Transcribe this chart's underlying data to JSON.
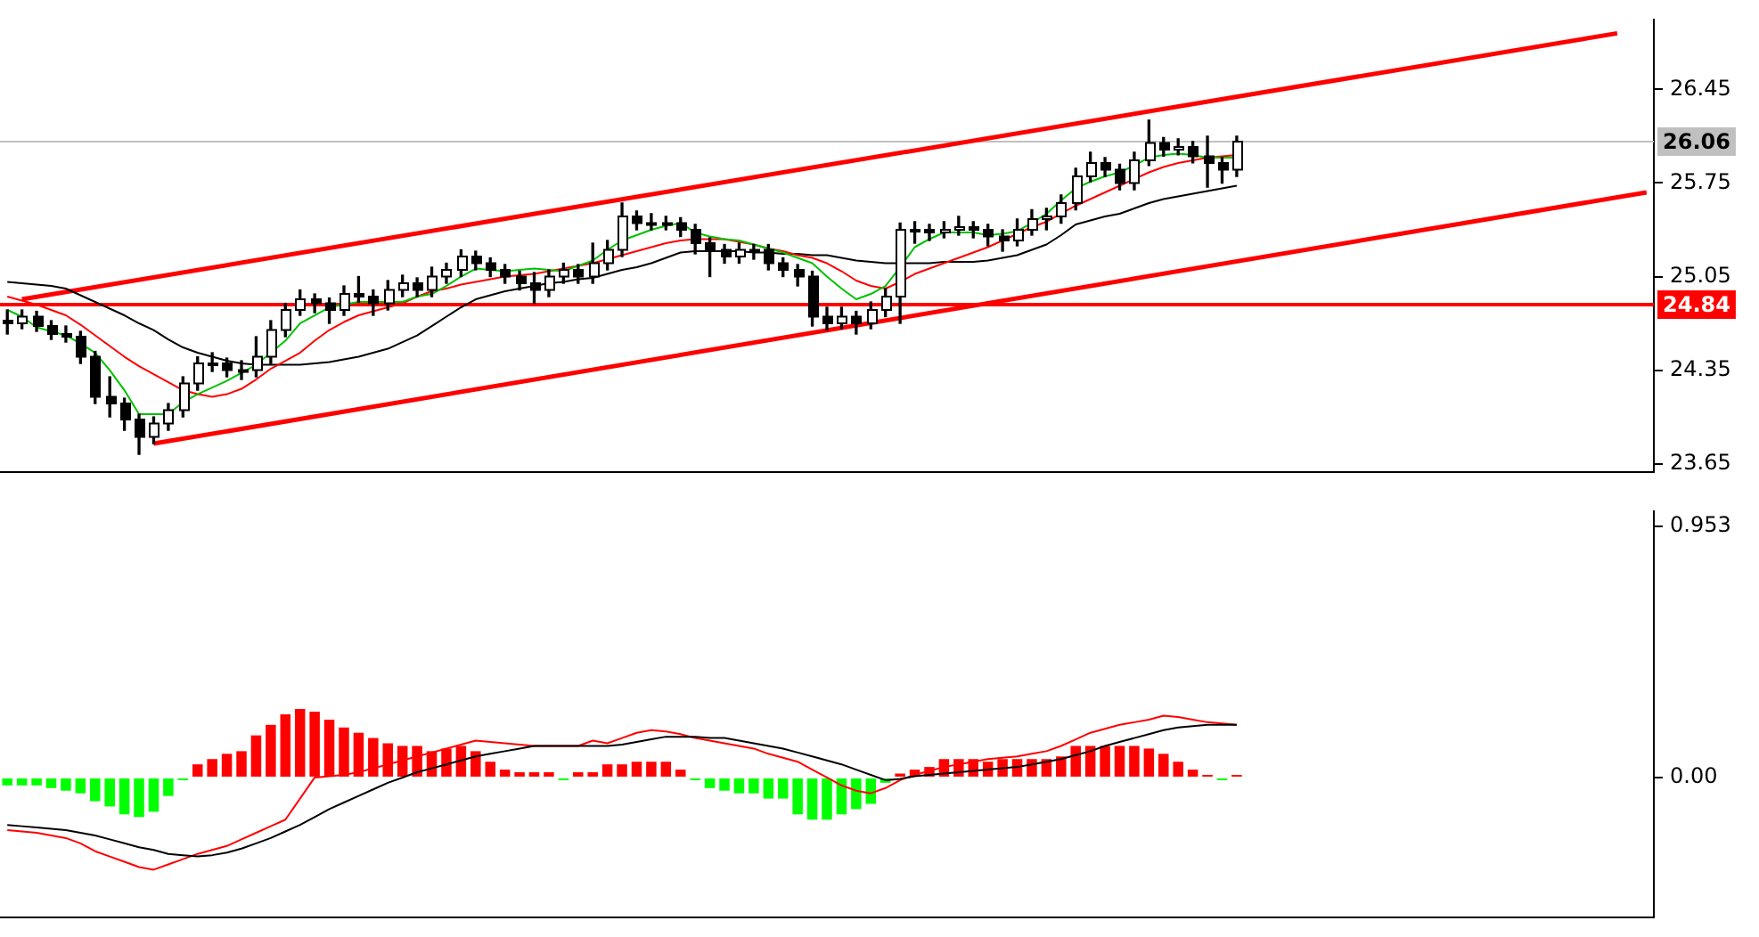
{
  "chart_data": [
    {
      "type": "candlestick",
      "categories": [
        null,
        null,
        null,
        null,
        null,
        null,
        null,
        null,
        null,
        null,
        null,
        null,
        null,
        null,
        null,
        null,
        null,
        null,
        null,
        null,
        null,
        null,
        null,
        null,
        null,
        null,
        null,
        null,
        null,
        null,
        null,
        null,
        null,
        null,
        null,
        null,
        null,
        null,
        null,
        null,
        null,
        null,
        null,
        null,
        null,
        null,
        null,
        null,
        null,
        null,
        null,
        null,
        null,
        null,
        null,
        null,
        null,
        null,
        null,
        null,
        null,
        null,
        null,
        null,
        null,
        null,
        null,
        null,
        null,
        null,
        null,
        null,
        null,
        null,
        null,
        null,
        null,
        null,
        null,
        null,
        null,
        null,
        null,
        null,
        null,
        null,
        null,
        null,
        null,
        null,
        null,
        null,
        null,
        null,
        null,
        null,
        null,
        null,
        null,
        null,
        null,
        null,
        null,
        null,
        null,
        null,
        null,
        null,
        null,
        null,
        null,
        null,
        null
      ],
      "ohlc": [
        [
          24.72,
          24.8,
          24.62,
          24.7
        ],
        [
          24.7,
          24.8,
          24.66,
          24.75
        ],
        [
          24.75,
          24.79,
          24.64,
          24.68
        ],
        [
          24.68,
          24.72,
          24.58,
          24.62
        ],
        [
          24.62,
          24.68,
          24.56,
          24.6
        ],
        [
          24.6,
          24.64,
          24.4,
          24.45
        ],
        [
          24.45,
          24.49,
          24.1,
          24.15
        ],
        [
          24.15,
          24.3,
          24.0,
          24.1
        ],
        [
          24.1,
          24.14,
          23.9,
          23.98
        ],
        [
          23.98,
          24.02,
          23.72,
          23.85
        ],
        [
          23.85,
          24.0,
          23.8,
          23.95
        ],
        [
          23.95,
          24.1,
          23.9,
          24.05
        ],
        [
          24.05,
          24.3,
          24.0,
          24.25
        ],
        [
          24.25,
          24.45,
          24.2,
          24.4
        ],
        [
          24.4,
          24.48,
          24.34,
          24.4
        ],
        [
          24.4,
          24.44,
          24.3,
          24.35
        ],
        [
          24.35,
          24.42,
          24.28,
          24.35
        ],
        [
          24.35,
          24.6,
          24.3,
          24.45
        ],
        [
          24.45,
          24.72,
          24.4,
          24.65
        ],
        [
          24.65,
          24.85,
          24.6,
          24.8
        ],
        [
          24.8,
          24.95,
          24.76,
          24.88
        ],
        [
          24.88,
          24.92,
          24.78,
          24.85
        ],
        [
          24.85,
          24.89,
          24.7,
          24.8
        ],
        [
          24.8,
          24.98,
          24.76,
          24.92
        ],
        [
          24.92,
          25.05,
          24.86,
          24.9
        ],
        [
          24.9,
          24.95,
          24.76,
          24.85
        ],
        [
          24.85,
          25.02,
          24.8,
          24.95
        ],
        [
          24.95,
          25.06,
          24.9,
          25.0
        ],
        [
          25.0,
          25.04,
          24.9,
          24.95
        ],
        [
          24.95,
          25.12,
          24.9,
          25.05
        ],
        [
          25.05,
          25.15,
          25.0,
          25.1
        ],
        [
          25.1,
          25.25,
          25.05,
          25.2
        ],
        [
          25.2,
          25.24,
          25.1,
          25.15
        ],
        [
          25.15,
          25.19,
          25.05,
          25.1
        ],
        [
          25.1,
          25.14,
          25.0,
          25.05
        ],
        [
          25.05,
          25.09,
          24.95,
          25.0
        ],
        [
          25.0,
          25.08,
          24.85,
          24.95
        ],
        [
          24.95,
          25.1,
          24.9,
          25.05
        ],
        [
          25.05,
          25.15,
          25.0,
          25.1
        ],
        [
          25.1,
          25.14,
          25.0,
          25.05
        ],
        [
          25.05,
          25.3,
          25.0,
          25.15
        ],
        [
          25.15,
          25.32,
          25.1,
          25.25
        ],
        [
          25.25,
          25.6,
          25.2,
          25.5
        ],
        [
          25.5,
          25.54,
          25.4,
          25.45
        ],
        [
          25.45,
          25.52,
          25.4,
          25.45
        ],
        [
          25.45,
          25.5,
          25.4,
          25.45
        ],
        [
          25.45,
          25.49,
          25.35,
          25.4
        ],
        [
          25.4,
          25.44,
          25.22,
          25.3
        ],
        [
          25.3,
          25.34,
          25.05,
          25.25
        ],
        [
          25.25,
          25.29,
          25.15,
          25.2
        ],
        [
          25.2,
          25.3,
          25.15,
          25.25
        ],
        [
          25.25,
          25.29,
          25.18,
          25.25
        ],
        [
          25.25,
          25.29,
          25.1,
          25.15
        ],
        [
          25.15,
          25.19,
          25.05,
          25.1
        ],
        [
          25.1,
          25.14,
          24.98,
          25.05
        ],
        [
          25.05,
          25.09,
          24.68,
          24.75
        ],
        [
          24.75,
          24.82,
          24.65,
          24.7
        ],
        [
          24.7,
          24.82,
          24.66,
          24.75
        ],
        [
          24.75,
          24.79,
          24.62,
          24.7
        ],
        [
          24.7,
          24.86,
          24.66,
          24.8
        ],
        [
          24.8,
          24.96,
          24.75,
          24.9
        ],
        [
          24.9,
          25.45,
          24.7,
          25.4
        ],
        [
          25.4,
          25.46,
          25.3,
          25.4
        ],
        [
          25.4,
          25.44,
          25.32,
          25.38
        ],
        [
          25.38,
          25.46,
          25.34,
          25.4
        ],
        [
          25.4,
          25.5,
          25.36,
          25.42
        ],
        [
          25.42,
          25.46,
          25.34,
          25.4
        ],
        [
          25.4,
          25.44,
          25.28,
          25.35
        ],
        [
          25.35,
          25.4,
          25.24,
          25.32
        ],
        [
          25.32,
          25.48,
          25.28,
          25.4
        ],
        [
          25.4,
          25.55,
          25.36,
          25.48
        ],
        [
          25.48,
          25.56,
          25.4,
          25.5
        ],
        [
          25.5,
          25.66,
          25.45,
          25.6
        ],
        [
          25.6,
          25.86,
          25.55,
          25.8
        ],
        [
          25.8,
          25.98,
          25.76,
          25.9
        ],
        [
          25.9,
          25.94,
          25.8,
          25.85
        ],
        [
          25.85,
          25.89,
          25.7,
          25.75
        ],
        [
          25.75,
          25.98,
          25.7,
          25.92
        ],
        [
          25.92,
          26.22,
          25.88,
          26.05
        ],
        [
          26.05,
          26.09,
          25.95,
          26.0
        ],
        [
          26.0,
          26.08,
          25.96,
          26.02
        ],
        [
          26.02,
          26.06,
          25.9,
          25.95
        ],
        [
          25.95,
          26.1,
          25.72,
          25.9
        ],
        [
          25.9,
          25.94,
          25.75,
          25.85
        ],
        [
          25.85,
          26.1,
          25.8,
          26.06
        ],
        null,
        null,
        null,
        null,
        null,
        null,
        null,
        null,
        null,
        null,
        null,
        null,
        null,
        null,
        null,
        null,
        null,
        null,
        null,
        null,
        null,
        null,
        null,
        null,
        null,
        null,
        null,
        null
      ],
      "series": [
        {
          "type": "line",
          "color": "#00c000",
          "values": [
            24.8,
            24.75,
            24.67,
            24.64,
            24.61,
            24.55,
            24.48,
            24.35,
            24.2,
            24.02,
            24.02,
            24.02,
            24.11,
            24.17,
            24.22,
            24.27,
            24.33,
            24.39,
            24.48,
            24.57,
            24.7,
            24.76,
            24.82,
            24.84,
            24.86,
            24.86,
            24.86,
            24.86,
            24.9,
            24.92,
            24.98,
            25.05,
            25.11,
            25.1,
            25.09,
            25.1,
            25.11,
            25.1,
            25.09,
            25.13,
            25.17,
            25.25,
            25.32,
            25.36,
            25.4,
            25.43,
            25.45,
            25.38,
            25.35,
            25.33,
            25.32,
            25.29,
            25.26,
            25.23,
            25.19,
            25.15,
            25.05,
            24.96,
            24.88,
            24.92,
            24.98,
            25.12,
            25.27,
            25.33,
            25.38,
            25.38,
            25.38,
            25.36,
            25.37,
            25.39,
            25.45,
            25.52,
            25.62,
            25.71,
            25.76,
            25.8,
            25.83,
            25.88,
            25.94,
            25.96,
            25.97,
            25.96,
            25.94,
            25.94,
            25.94,
            null,
            null,
            null,
            null,
            null,
            null,
            null,
            null,
            null,
            null,
            null,
            null,
            null,
            null,
            null,
            null,
            null,
            null,
            null,
            null,
            null,
            null,
            null,
            null,
            null,
            null,
            null,
            null
          ]
        },
        {
          "type": "line",
          "color": "#ff0000",
          "values": [
            24.9,
            24.87,
            24.84,
            24.8,
            24.76,
            24.69,
            24.61,
            24.53,
            24.45,
            24.38,
            24.32,
            24.26,
            24.2,
            24.17,
            24.15,
            24.17,
            24.21,
            24.28,
            24.36,
            24.42,
            24.48,
            24.57,
            24.65,
            24.71,
            24.76,
            24.79,
            24.82,
            24.85,
            24.9,
            24.94,
            24.96,
            24.99,
            25.01,
            25.03,
            25.05,
            25.06,
            25.07,
            25.09,
            25.11,
            25.13,
            25.15,
            25.18,
            25.21,
            25.24,
            25.27,
            25.3,
            25.32,
            25.33,
            25.33,
            25.33,
            25.31,
            25.29,
            25.26,
            25.24,
            25.21,
            25.19,
            25.15,
            25.09,
            25.02,
            24.98,
            24.96,
            25.01,
            25.07,
            25.11,
            25.15,
            25.19,
            25.23,
            25.27,
            25.32,
            25.37,
            25.42,
            25.46,
            25.52,
            25.58,
            25.63,
            25.68,
            25.73,
            25.78,
            25.83,
            25.87,
            25.9,
            25.92,
            25.94,
            25.95,
            25.96,
            null,
            null,
            null,
            null,
            null,
            null,
            null,
            null,
            null,
            null,
            null,
            null,
            null,
            null,
            null,
            null,
            null,
            null,
            null,
            null,
            null,
            null,
            null,
            null,
            null,
            null,
            null,
            null
          ]
        },
        {
          "type": "line",
          "color": "#000000",
          "values": [
            25.01,
            25.0,
            24.99,
            24.98,
            24.96,
            24.91,
            24.86,
            24.81,
            24.76,
            24.7,
            24.65,
            24.58,
            24.52,
            24.48,
            24.45,
            24.42,
            24.4,
            24.39,
            24.39,
            24.39,
            24.39,
            24.4,
            24.41,
            24.43,
            24.45,
            24.48,
            24.51,
            24.56,
            24.61,
            24.68,
            24.75,
            24.82,
            24.88,
            24.91,
            24.94,
            24.96,
            24.98,
            25.0,
            25.01,
            25.03,
            25.04,
            25.07,
            25.1,
            25.12,
            25.15,
            25.19,
            25.23,
            25.24,
            25.24,
            25.24,
            25.24,
            25.23,
            25.23,
            25.22,
            25.22,
            25.21,
            25.21,
            25.19,
            25.17,
            25.16,
            25.15,
            25.15,
            25.15,
            25.15,
            25.16,
            25.16,
            25.16,
            25.17,
            25.19,
            25.21,
            25.25,
            25.29,
            25.36,
            25.44,
            25.47,
            25.5,
            25.52,
            25.56,
            25.6,
            25.63,
            25.65,
            25.67,
            25.69,
            25.71,
            25.73,
            null,
            null,
            null,
            null,
            null,
            null,
            null,
            null,
            null,
            null,
            null,
            null,
            null,
            null,
            null,
            null,
            null,
            null,
            null,
            null,
            null,
            null,
            null,
            null,
            null,
            null,
            null,
            null
          ]
        },
        {
          "type": "line",
          "color": "#ff0000",
          "values": [
            null,
            24.88,
            null,
            null,
            null,
            null,
            null,
            null,
            null,
            null,
            null,
            null,
            null,
            null,
            null,
            null,
            null,
            null,
            null,
            null,
            null,
            null,
            null,
            null,
            null,
            null,
            null,
            null,
            null,
            null,
            null,
            null,
            null,
            null,
            null,
            null,
            null,
            null,
            null,
            null,
            null,
            null,
            null,
            null,
            null,
            null,
            null,
            null,
            null,
            null,
            null,
            null,
            null,
            null,
            null,
            null,
            null,
            null,
            null,
            null,
            null,
            null,
            null,
            null,
            null,
            null,
            null,
            null,
            null,
            null,
            null,
            null,
            null,
            null,
            null,
            null,
            null,
            null,
            null,
            null,
            null,
            null,
            null,
            null,
            null,
            null,
            null,
            null,
            null,
            null,
            null,
            null,
            null,
            null,
            null,
            null,
            null,
            null,
            null,
            null,
            null,
            null,
            null,
            null,
            null,
            null,
            null,
            null,
            null,
            null,
            26.87,
            null,
            null
          ]
        },
        {
          "type": "line",
          "color": "#ff0000",
          "values": [
            null,
            null,
            null,
            null,
            null,
            null,
            null,
            null,
            null,
            null,
            23.8,
            null,
            null,
            null,
            null,
            null,
            null,
            null,
            null,
            null,
            null,
            null,
            null,
            null,
            null,
            null,
            null,
            null,
            null,
            null,
            null,
            null,
            null,
            null,
            null,
            null,
            null,
            null,
            null,
            null,
            null,
            null,
            null,
            null,
            null,
            null,
            null,
            null,
            null,
            null,
            null,
            null,
            null,
            null,
            null,
            null,
            null,
            null,
            null,
            null,
            null,
            null,
            null,
            null,
            null,
            null,
            null,
            null,
            null,
            null,
            null,
            null,
            null,
            null,
            null,
            null,
            null,
            null,
            null,
            null,
            null,
            null,
            null,
            null,
            null,
            null,
            null,
            null,
            null,
            null,
            null,
            null,
            null,
            null,
            null,
            null,
            null,
            null,
            null,
            null,
            null,
            null,
            null,
            null,
            null,
            null,
            null,
            null,
            null,
            null,
            null,
            null,
            25.68
          ]
        }
      ],
      "ylim": [
        23.59,
        26.97
      ],
      "yticks": [
        23.65,
        24.35,
        25.05,
        25.75,
        26.45
      ],
      "ref_lines": [
        {
          "axis": "y",
          "value": 26.06,
          "label": "26.06",
          "color": "#c0c0c0"
        },
        {
          "axis": "y",
          "value": 24.84,
          "label": "24.84",
          "color": "#ff0000"
        }
      ],
      "tick_labels": "y",
      "legend": false,
      "grid": false
    },
    {
      "type": "bar",
      "categories": [
        null,
        null,
        null,
        null,
        null,
        null,
        null,
        null,
        null,
        null,
        null,
        null,
        null,
        null,
        null,
        null,
        null,
        null,
        null,
        null,
        null,
        null,
        null,
        null,
        null,
        null,
        null,
        null,
        null,
        null,
        null,
        null,
        null,
        null,
        null,
        null,
        null,
        null,
        null,
        null,
        null,
        null,
        null,
        null,
        null,
        null,
        null,
        null,
        null,
        null,
        null,
        null,
        null,
        null,
        null,
        null,
        null,
        null,
        null,
        null,
        null,
        null,
        null,
        null,
        null,
        null,
        null,
        null,
        null,
        null,
        null,
        null,
        null,
        null,
        null,
        null,
        null,
        null,
        null,
        null,
        null,
        null,
        null,
        null,
        null,
        null,
        null,
        null,
        null,
        null,
        null,
        null,
        null,
        null,
        null,
        null,
        null,
        null,
        null,
        null,
        null,
        null,
        null,
        null,
        null,
        null,
        null,
        null,
        null,
        null,
        null,
        null,
        null
      ],
      "series": [
        {
          "type": "bar",
          "values": [
            -0.03,
            -0.03,
            -0.03,
            -0.04,
            -0.05,
            -0.06,
            -0.09,
            -0.11,
            -0.14,
            -0.15,
            -0.13,
            -0.07,
            -0.01,
            0.05,
            0.07,
            0.09,
            0.1,
            0.16,
            0.2,
            0.24,
            0.26,
            0.25,
            0.22,
            0.19,
            0.17,
            0.15,
            0.13,
            0.12,
            0.12,
            0.1,
            0.11,
            0.12,
            0.1,
            0.06,
            0.03,
            0.02,
            0.02,
            0.02,
            -0.01,
            0.02,
            0.02,
            0.05,
            0.05,
            0.06,
            0.06,
            0.06,
            0.03,
            -0.01,
            -0.04,
            -0.05,
            -0.06,
            -0.06,
            -0.08,
            -0.08,
            -0.14,
            -0.16,
            -0.16,
            -0.14,
            -0.12,
            -0.1,
            -0.02,
            0.015,
            0.03,
            0.04,
            0.07,
            0.07,
            0.07,
            0.06,
            0.07,
            0.07,
            0.07,
            0.07,
            0.08,
            0.12,
            0.12,
            0.12,
            0.12,
            0.12,
            0.11,
            0.09,
            0.06,
            0.03,
            0.01,
            -0.01,
            0.01,
            null,
            null,
            null,
            null,
            null,
            null,
            null,
            null,
            null,
            null,
            null,
            null,
            null,
            null,
            null,
            null,
            null,
            null,
            null,
            null,
            null,
            null,
            null,
            null,
            null,
            null,
            null,
            null
          ],
          "colors": [
            "#00ff00",
            "#00ff00",
            "#00ff00",
            "#00ff00",
            "#00ff00",
            "#00ff00",
            "#00ff00",
            "#00ff00",
            "#00ff00",
            "#00ff00",
            "#00ff00",
            "#00ff00",
            "#00ff00",
            "#ff0000",
            "#ff0000",
            "#ff0000",
            "#ff0000",
            "#ff0000",
            "#ff0000",
            "#ff0000",
            "#ff0000",
            "#ff0000",
            "#ff0000",
            "#ff0000",
            "#ff0000",
            "#ff0000",
            "#ff0000",
            "#ff0000",
            "#ff0000",
            "#ff0000",
            "#ff0000",
            "#ff0000",
            "#ff0000",
            "#ff0000",
            "#ff0000",
            "#ff0000",
            "#ff0000",
            "#ff0000",
            "#00ff00",
            "#ff0000",
            "#ff0000",
            "#ff0000",
            "#ff0000",
            "#ff0000",
            "#ff0000",
            "#ff0000",
            "#ff0000",
            "#00ff00",
            "#00ff00",
            "#00ff00",
            "#00ff00",
            "#00ff00",
            "#00ff00",
            "#00ff00",
            "#00ff00",
            "#00ff00",
            "#00ff00",
            "#00ff00",
            "#00ff00",
            "#00ff00",
            "#00ff00",
            "#ff0000",
            "#ff0000",
            "#ff0000",
            "#ff0000",
            "#ff0000",
            "#ff0000",
            "#ff0000",
            "#ff0000",
            "#ff0000",
            "#ff0000",
            "#ff0000",
            "#ff0000",
            "#ff0000",
            "#ff0000",
            "#ff0000",
            "#ff0000",
            "#ff0000",
            "#ff0000",
            "#ff0000",
            "#ff0000",
            "#ff0000",
            "#ff0000",
            "#00ff00",
            "#ff0000",
            null,
            null,
            null,
            null,
            null,
            null,
            null,
            null,
            null,
            null,
            null,
            null,
            null,
            null,
            null,
            null,
            null,
            null,
            null,
            null,
            null,
            null,
            null,
            null,
            null,
            null,
            null,
            null
          ]
        },
        {
          "type": "line",
          "color": "#000000",
          "values": [
            -0.18,
            -0.185,
            -0.19,
            -0.195,
            -0.2,
            -0.21,
            -0.22,
            -0.235,
            -0.25,
            -0.265,
            -0.275,
            -0.29,
            -0.295,
            -0.3,
            -0.295,
            -0.285,
            -0.27,
            -0.25,
            -0.23,
            -0.205,
            -0.18,
            -0.15,
            -0.12,
            -0.095,
            -0.07,
            -0.045,
            -0.02,
            0.0,
            0.02,
            0.035,
            0.05,
            0.065,
            0.08,
            0.09,
            0.1,
            0.11,
            0.12,
            0.12,
            0.12,
            0.12,
            0.12,
            0.12,
            0.125,
            0.135,
            0.145,
            0.155,
            0.155,
            0.155,
            0.15,
            0.15,
            0.14,
            0.13,
            0.12,
            0.11,
            0.095,
            0.08,
            0.065,
            0.05,
            0.03,
            0.01,
            -0.01,
            -0.005,
            0.005,
            0.01,
            0.015,
            0.02,
            0.025,
            0.03,
            0.035,
            0.04,
            0.05,
            0.06,
            0.07,
            0.085,
            0.1,
            0.12,
            0.135,
            0.15,
            0.165,
            0.18,
            0.19,
            0.195,
            0.2,
            0.2,
            0.2,
            null,
            null,
            null,
            null,
            null,
            null,
            null,
            null,
            null,
            null,
            null,
            null,
            null,
            null,
            null,
            null,
            null,
            null,
            null,
            null,
            null,
            null,
            null,
            null,
            null,
            null,
            null,
            null
          ]
        },
        {
          "type": "line",
          "color": "#ff0000",
          "values": [
            -0.2,
            -0.205,
            -0.21,
            -0.22,
            -0.23,
            -0.25,
            -0.28,
            -0.3,
            -0.32,
            -0.34,
            -0.35,
            -0.33,
            -0.31,
            -0.29,
            -0.275,
            -0.26,
            -0.235,
            -0.21,
            -0.185,
            -0.16,
            -0.08,
            0.0,
            0.005,
            0.01,
            0.02,
            0.035,
            0.05,
            0.065,
            0.08,
            0.095,
            0.11,
            0.125,
            0.14,
            0.135,
            0.13,
            0.125,
            0.12,
            0.12,
            0.12,
            0.12,
            0.14,
            0.13,
            0.15,
            0.17,
            0.18,
            0.175,
            0.165,
            0.15,
            0.14,
            0.13,
            0.12,
            0.11,
            0.09,
            0.075,
            0.06,
            0.03,
            0.0,
            -0.03,
            -0.05,
            -0.06,
            -0.04,
            -0.01,
            0.01,
            0.025,
            0.04,
            0.05,
            0.06,
            0.07,
            0.075,
            0.08,
            0.09,
            0.1,
            0.12,
            0.145,
            0.17,
            0.185,
            0.2,
            0.21,
            0.22,
            0.235,
            0.23,
            0.22,
            0.21,
            0.205,
            0.2,
            null,
            null,
            null,
            null,
            null,
            null,
            null,
            null,
            null,
            null,
            null,
            null,
            null,
            null,
            null,
            null,
            null,
            null,
            null,
            null,
            null,
            null,
            null,
            null,
            null,
            null,
            null,
            null
          ]
        }
      ],
      "ylim": [
        -0.53,
        1.01
      ],
      "yticks": [
        0.953,
        {
          "value": 0,
          "label": "0.00"
        }
      ],
      "tick_labels": "y",
      "legend": false,
      "grid": false
    }
  ]
}
